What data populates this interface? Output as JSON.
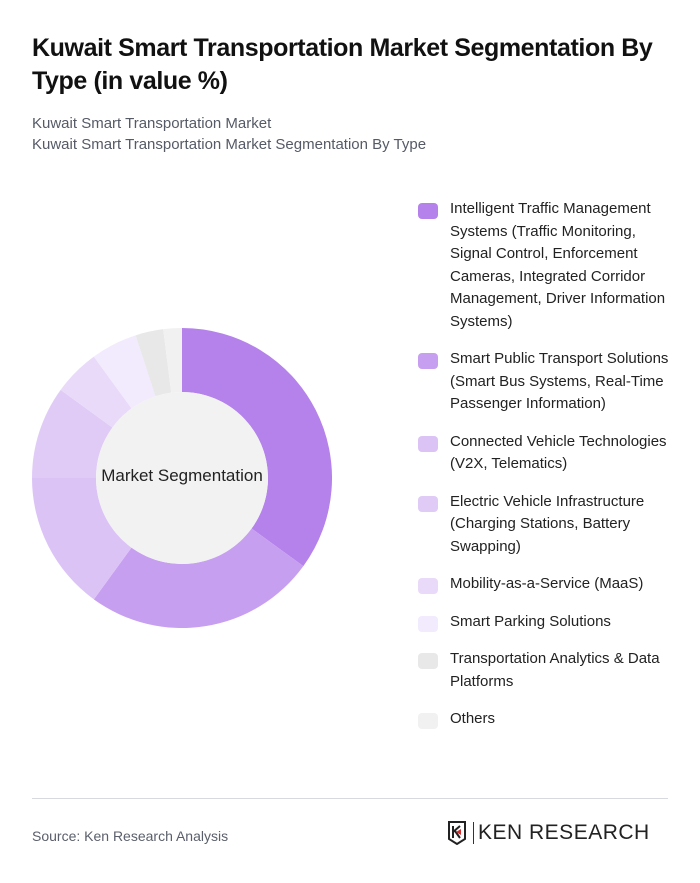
{
  "header": {
    "title": "Kuwait Smart Transportation Market Segmentation By Type (in value %)",
    "subtitle_line1": "Kuwait Smart Transportation Market",
    "subtitle_line2": "Kuwait Smart Transportation Market Segmentation By Type"
  },
  "chart": {
    "center_label": "Market Segmentation"
  },
  "legend": {
    "items": [
      {
        "label": "Intelligent Traffic Management Systems (Traffic Monitoring, Signal Control, Enforcement Cameras, Integrated Corridor Management, Driver Information Systems)",
        "color": "#b482ea"
      },
      {
        "label": "Smart Public Transport Solutions (Smart Bus Systems, Real-Time Passenger Information)",
        "color": "#c79ff0"
      },
      {
        "label": "Connected Vehicle Technologies (V2X, Telematics)",
        "color": "#dcc3f6"
      },
      {
        "label": "Electric Vehicle Infrastructure (Charging Stations, Battery Swapping)",
        "color": "#e0cbf7"
      },
      {
        "label": "Mobility-as-a-Service (MaaS)",
        "color": "#e9dafa"
      },
      {
        "label": "Smart Parking Solutions",
        "color": "#f2eafd"
      },
      {
        "label": "Transportation Analytics & Data Platforms",
        "color": "#e8e8e8"
      },
      {
        "label": "Others",
        "color": "#f1f1f1"
      }
    ]
  },
  "footer": {
    "source": "Source: Ken Research Analysis",
    "logo_text": "KEN RESEARCH"
  },
  "chart_data": {
    "type": "pie",
    "donut": true,
    "title": "Kuwait Smart Transportation Market Segmentation By Type (in value %)",
    "center_label": "Market Segmentation",
    "categories": [
      "Intelligent Traffic Management Systems (Traffic Monitoring, Signal Control, Enforcement Cameras, Integrated Corridor Management, Driver Information Systems)",
      "Smart Public Transport Solutions (Smart Bus Systems, Real-Time Passenger Information)",
      "Connected Vehicle Technologies (V2X, Telematics)",
      "Electric Vehicle Infrastructure (Charging Stations, Battery Swapping)",
      "Mobility-as-a-Service (MaaS)",
      "Smart Parking Solutions",
      "Transportation Analytics & Data Platforms",
      "Others"
    ],
    "values": [
      35,
      25,
      15,
      10,
      5,
      5,
      3,
      2
    ],
    "colors": [
      "#b482ea",
      "#c79ff0",
      "#dcc3f6",
      "#e0cbf7",
      "#e9dafa",
      "#f2eafd",
      "#e8e8e8",
      "#f1f1f1"
    ],
    "legend_position": "right",
    "start_angle": "top, clockwise"
  }
}
